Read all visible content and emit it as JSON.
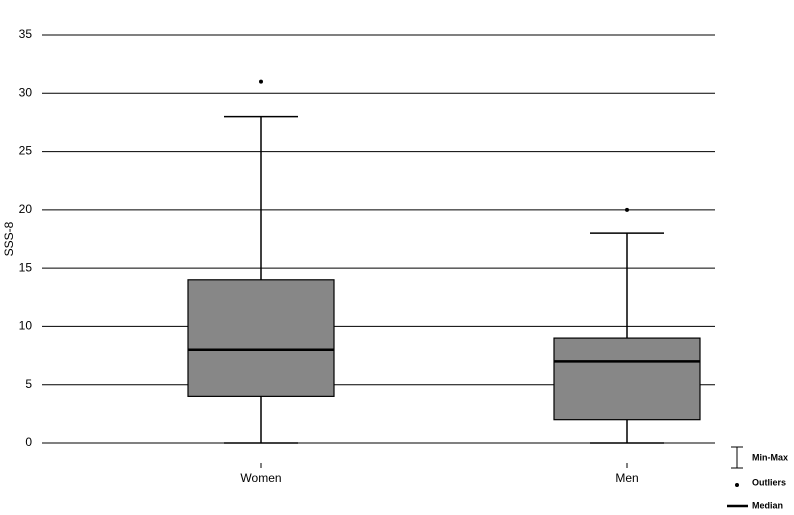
{
  "chart_data": {
    "type": "box",
    "ylabel": "SSS-8",
    "categories": [
      "Women",
      "Men"
    ],
    "boxes": [
      {
        "min": 0,
        "q1": 4,
        "median": 8,
        "q3": 14,
        "max": 28,
        "outliers": [
          31
        ]
      },
      {
        "min": 0,
        "q1": 2,
        "median": 7,
        "q3": 9,
        "max": 18,
        "outliers": [
          20
        ]
      }
    ],
    "color": "#878787",
    "ylim": [
      0,
      35
    ],
    "yticks": [
      0,
      5,
      10,
      15,
      20,
      25,
      30,
      35
    ],
    "grid": true,
    "legend": [
      "Min-Max",
      "Outliers",
      "Median"
    ]
  }
}
